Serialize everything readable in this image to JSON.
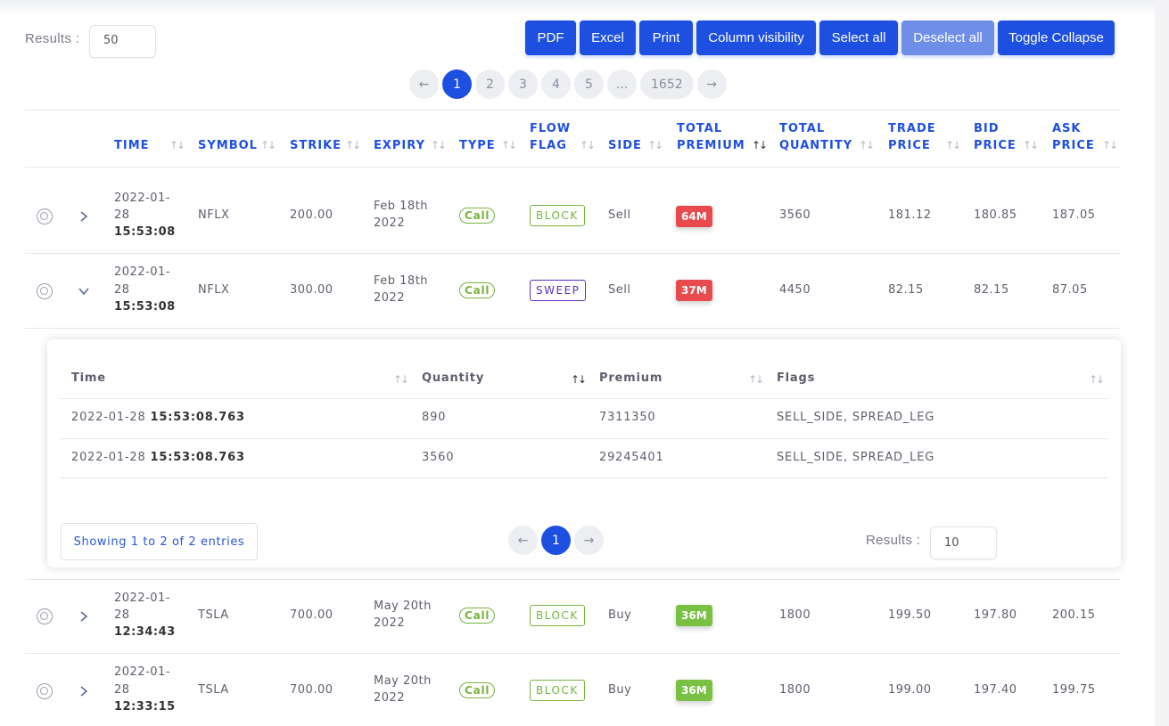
{
  "controls": {
    "results_label": "Results :",
    "results_value": "50"
  },
  "toolbar": {
    "pdf": "PDF",
    "excel": "Excel",
    "print": "Print",
    "column_visibility": "Column visibility",
    "select_all": "Select all",
    "deselect_all": "Deselect all",
    "toggle_collapse": "Toggle Collapse"
  },
  "pagination": {
    "prev": "←",
    "pages": [
      "1",
      "2",
      "3",
      "4",
      "5",
      "...",
      "1652"
    ],
    "current": "1",
    "next": "→"
  },
  "table": {
    "headers": {
      "time": "TIME",
      "symbol": "SYMBOL",
      "strike": "STRIKE",
      "expiry": "EXPIRY",
      "type": "TYPE",
      "flow_flag_1": "FLOW",
      "flow_flag_2": "FLAG",
      "side": "SIDE",
      "total_premium_1": "TOTAL",
      "total_premium_2": "PREMIUM",
      "total_quantity_1": "TOTAL",
      "total_quantity_2": "QUANTITY",
      "trade_price_1": "TRADE",
      "trade_price_2": "PRICE",
      "bid_price_1": "BID",
      "bid_price_2": "PRICE",
      "ask_price_1": "ASK",
      "ask_price_2": "PRICE"
    },
    "rows": [
      {
        "date_1": "2022-01-",
        "date_2": "28",
        "time": "15:53:08",
        "symbol": "NFLX",
        "strike": "200.00",
        "expiry_1": "Feb 18th",
        "expiry_2": "2022",
        "type": "Call",
        "flag": "BLOCK",
        "side": "Sell",
        "premium": "64M",
        "premium_color": "#e84a4e",
        "quantity": "3560",
        "trade_price": "181.12",
        "bid_price": "180.85",
        "ask_price": "187.05",
        "expanded": false
      },
      {
        "date_1": "2022-01-",
        "date_2": "28",
        "time": "15:53:08",
        "symbol": "NFLX",
        "strike": "300.00",
        "expiry_1": "Feb 18th",
        "expiry_2": "2022",
        "type": "Call",
        "flag": "SWEEP",
        "side": "Sell",
        "premium": "37M",
        "premium_color": "#e84a4e",
        "quantity": "4450",
        "trade_price": "82.15",
        "bid_price": "82.15",
        "ask_price": "87.05",
        "expanded": true
      },
      {
        "date_1": "2022-01-",
        "date_2": "28",
        "time": "12:34:43",
        "symbol": "TSLA",
        "strike": "700.00",
        "expiry_1": "May 20th",
        "expiry_2": "2022",
        "type": "Call",
        "flag": "BLOCK",
        "side": "Buy",
        "premium": "36M",
        "premium_color": "#79c043",
        "quantity": "1800",
        "trade_price": "199.50",
        "bid_price": "197.80",
        "ask_price": "200.15",
        "expanded": false
      },
      {
        "date_1": "2022-01-",
        "date_2": "28",
        "time": "12:33:15",
        "symbol": "TSLA",
        "strike": "700.00",
        "expiry_1": "May 20th",
        "expiry_2": "2022",
        "type": "Call",
        "flag": "BLOCK",
        "side": "Buy",
        "premium": "36M",
        "premium_color": "#79c043",
        "quantity": "1800",
        "trade_price": "199.00",
        "bid_price": "197.40",
        "ask_price": "199.75",
        "expanded": false
      }
    ]
  },
  "subtable": {
    "headers": {
      "time": "Time",
      "quantity": "Quantity",
      "premium": "Premium",
      "flags": "Flags"
    },
    "rows": [
      {
        "date": "2022-01-28",
        "time": "15:53:08.763",
        "quantity": "890",
        "premium": "7311350",
        "flags": "SELL_SIDE, SPREAD_LEG"
      },
      {
        "date": "2022-01-28",
        "time": "15:53:08.763",
        "quantity": "3560",
        "premium": "29245401",
        "flags": "SELL_SIDE, SPREAD_LEG"
      }
    ],
    "showing": "Showing 1 to 2 of 2 entries",
    "pagination": {
      "prev": "←",
      "current": "1",
      "next": "→"
    },
    "results_label": "Results :",
    "results_value": "10"
  },
  "icons": {
    "target": "crosshair-target-icon",
    "expand": "chevron-right-icon",
    "collapse": "chevron-down-icon",
    "sort": "sort-arrows-icon"
  },
  "colors": {
    "accent": "#1d4fe0",
    "accent_disabled": "#6f8ee8",
    "call": "#76b53e",
    "sweep": "#5a2fc0",
    "premium_red": "#e84a4e",
    "premium_green": "#79c043"
  }
}
